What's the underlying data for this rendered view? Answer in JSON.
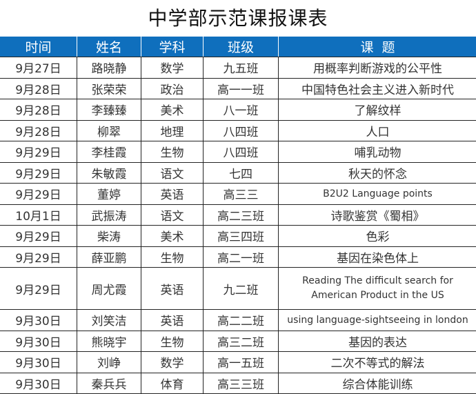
{
  "title": "中学部示范课报课表",
  "header_color": "#0f6fbd",
  "columns": [
    "时间",
    "姓名",
    "学科",
    "班级",
    "课  题"
  ],
  "rows": [
    [
      "9月27日",
      "路晓静",
      "数学",
      "九五班",
      "用概率判断游戏的公平性"
    ],
    [
      "9月28日",
      "张荣荣",
      "政治",
      "高一一班",
      "中国特色社会主义进入新时代"
    ],
    [
      "9月28日",
      "李臻臻",
      "美术",
      "八一班",
      "了解纹样"
    ],
    [
      "9月28日",
      "柳翠",
      "地理",
      "八四班",
      "人口"
    ],
    [
      "9月29日",
      "李桂霞",
      "生物",
      "八四班",
      "哺乳动物"
    ],
    [
      "9月29日",
      "朱敏霞",
      "语文",
      "七四",
      "秋天的怀念"
    ],
    [
      "9月29日",
      "董婷",
      "英语",
      "高三三",
      "B2U2 Language points"
    ],
    [
      "10月1日",
      "武振涛",
      "语文",
      "高二三班",
      "诗歌鉴赏《蜀相》"
    ],
    [
      "9月29日",
      "柴涛",
      "美术",
      "高三四班",
      "色彩"
    ],
    [
      "9月29日",
      "薛亚鹏",
      "生物",
      "高二一班",
      "基因在染色体上"
    ],
    [
      "9月29日",
      "周尤霞",
      "英语",
      "九二班",
      "Reading The difficult search for American Product in the US"
    ],
    [
      "9月30日",
      "刘笑洁",
      "英语",
      "高二二班",
      "using language-sightseeing in london"
    ],
    [
      "9月30日",
      "熊晓宇",
      "生物",
      "高三二班",
      "基因的表达"
    ],
    [
      "9月30日",
      "刘峥",
      "数学",
      "高一五班",
      "二次不等式的解法"
    ],
    [
      "9月30日",
      "秦兵兵",
      "体育",
      "高三三班",
      "综合体能训练"
    ]
  ]
}
